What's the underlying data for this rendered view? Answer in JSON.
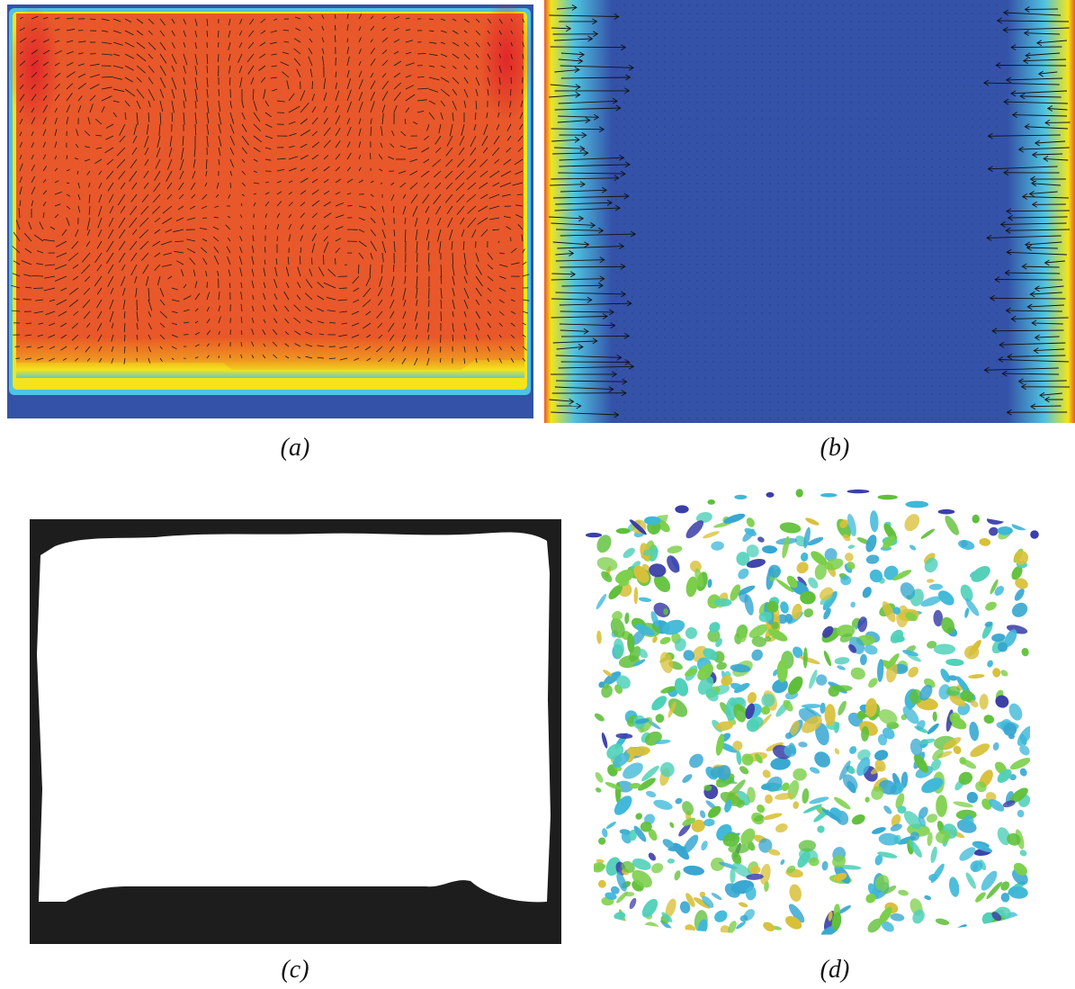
{
  "figure": {
    "panels": [
      {
        "id": "a",
        "caption": "(a)",
        "content": "temperature-field-with-velocity-vectors"
      },
      {
        "id": "b",
        "caption": "(b)",
        "content": "sidewall-field-with-velocity-vectors"
      },
      {
        "id": "c",
        "caption": "(c)",
        "content": "binary-mask"
      },
      {
        "id": "d",
        "caption": "(d)",
        "content": "3d-isosurfaces"
      }
    ]
  },
  "colors": {
    "field_low": "#3452a8",
    "field_high": "#e8582a",
    "cyan": "#4fc3e0",
    "yellow": "#f2e318",
    "mask_dark": "#1d1d1d",
    "mask_light": "#ffffff",
    "iso_green": "#5fbf3a",
    "iso_cyan": "#3fb8d8",
    "iso_blue": "#3a3fa8",
    "iso_yellow": "#d8c03a"
  }
}
